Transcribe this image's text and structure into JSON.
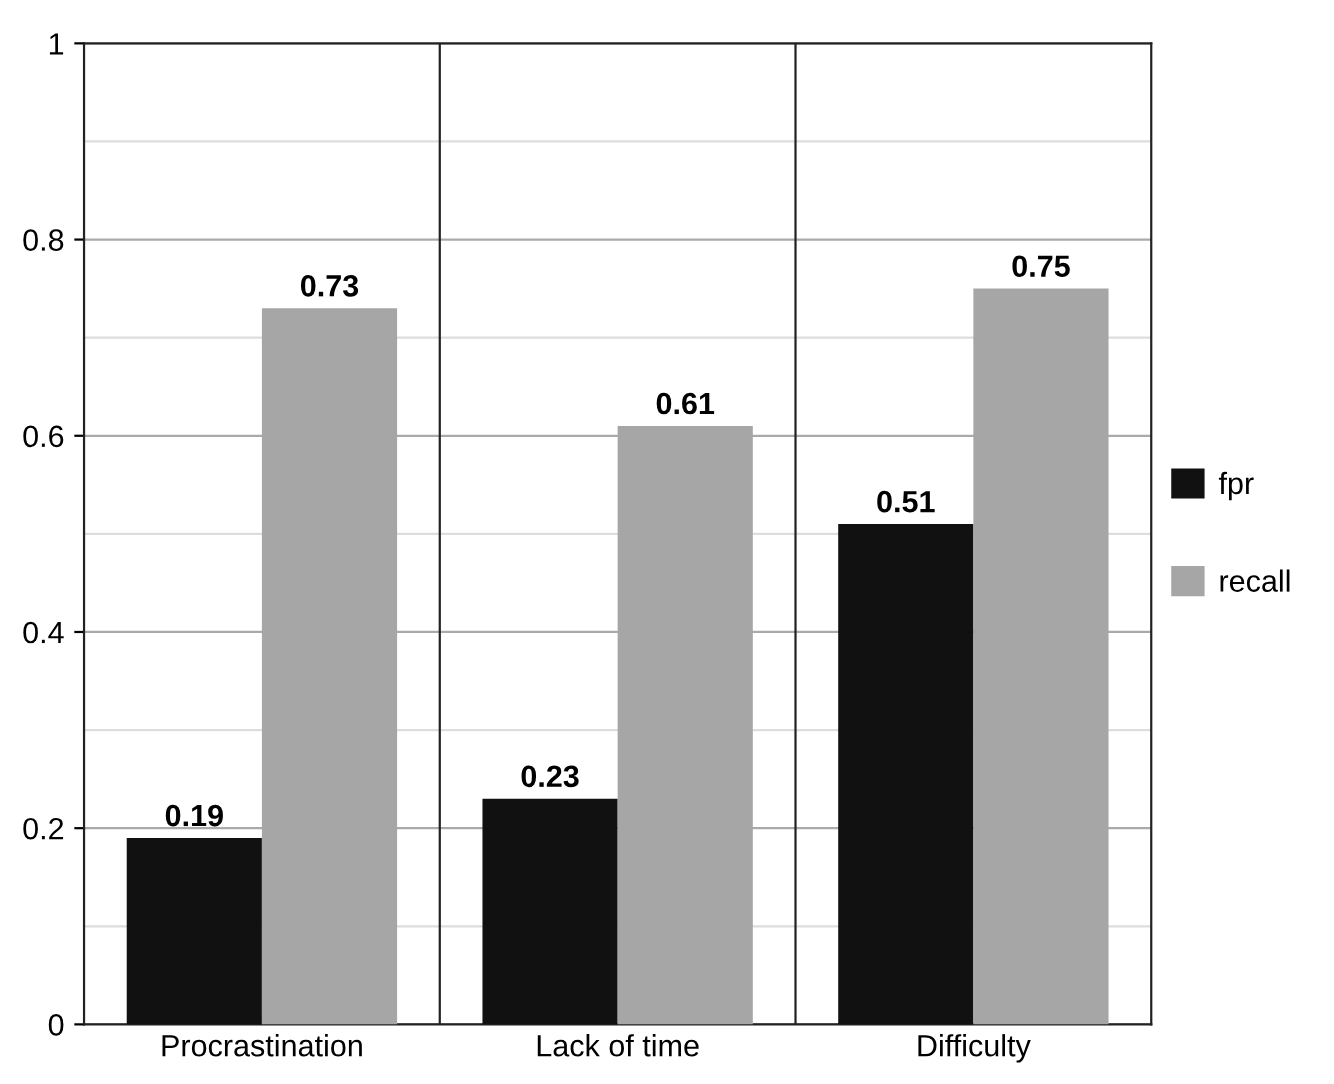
{
  "chart_data": {
    "type": "bar",
    "categories": [
      "Procrastination",
      "Lack of time",
      "Difficulty"
    ],
    "series": [
      {
        "name": "fpr",
        "color": "#111111",
        "values": [
          0.19,
          0.23,
          0.51
        ]
      },
      {
        "name": "recall",
        "color": "#a6a6a6",
        "values": [
          0.73,
          0.61,
          0.75
        ]
      }
    ],
    "data_labels": true,
    "ylim": [
      0,
      1
    ],
    "yticks": [
      0,
      {
        "value": 0.1,
        "label": null
      },
      0.2,
      {
        "value": 0.3,
        "label": null
      },
      0.4,
      {
        "value": 0.5,
        "label": null
      },
      0.6,
      {
        "value": 0.7,
        "label": null
      },
      0.8,
      {
        "value": 0.9,
        "label": null
      },
      1
    ],
    "grid": true,
    "legend": "right"
  }
}
